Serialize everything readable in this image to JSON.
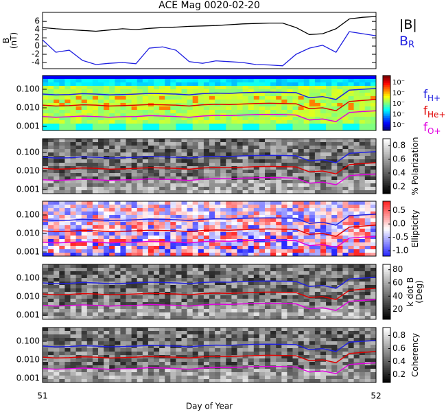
{
  "chart_data": [
    {
      "type": "line",
      "title": "ACE Mag 0020-02-20",
      "ylabel": [
        "B",
        "(nT)"
      ],
      "x": [
        51,
        51.04,
        51.08,
        51.12,
        51.16,
        51.2,
        51.24,
        51.28,
        51.32,
        51.36,
        51.4,
        51.44,
        51.48,
        51.52,
        51.56,
        51.6,
        51.64,
        51.68,
        51.72,
        51.76,
        51.8,
        51.84,
        51.88,
        51.92,
        51.96,
        52
      ],
      "xlim": [
        51,
        52
      ],
      "ylim": [
        -5.5,
        8.2
      ],
      "yticks": [
        -4,
        -2,
        0,
        2,
        4,
        6
      ],
      "series": [
        {
          "name": "|B|",
          "color": "#000000",
          "values": [
            4.5,
            4.2,
            4.0,
            3.8,
            3.6,
            3.9,
            4.2,
            4.0,
            4.3,
            4.5,
            4.6,
            4.8,
            4.9,
            5.0,
            5.2,
            5.4,
            5.5,
            5.6,
            5.6,
            4.5,
            2.8,
            3.0,
            4.2,
            6.6,
            7.0,
            7.2
          ]
        },
        {
          "name": "B",
          "subscript": "R",
          "color": "#2020e0",
          "values": [
            1.5,
            -1.5,
            -1.0,
            -3.5,
            -4.5,
            -4.2,
            -4.0,
            -4.3,
            -0.5,
            -0.2,
            -1.0,
            -3.8,
            -4.2,
            -3.6,
            -3.8,
            -4.0,
            -4.5,
            -4.6,
            -4.8,
            -2.0,
            -0.5,
            0.2,
            -1.5,
            3.5,
            3.0,
            2.5
          ]
        }
      ]
    },
    {
      "type": "spectrogram",
      "colormap": "jet",
      "log_y": true,
      "x": [
        51,
        51.04,
        51.08,
        51.12,
        51.16,
        51.2,
        51.24,
        51.28,
        51.32,
        51.36,
        51.4,
        51.44,
        51.48,
        51.52,
        51.56,
        51.6,
        51.64,
        51.68,
        51.72,
        51.76,
        51.8,
        51.84,
        51.88,
        51.92,
        51.96,
        52
      ],
      "xlim": [
        51,
        52
      ],
      "ylim": [
        0.0006,
        0.55
      ],
      "yticks": [
        {
          "value": 0.1,
          "label": "0.100"
        },
        {
          "value": 0.01,
          "label": "0.010"
        },
        0.001
      ],
      "colorbar_tick_labels": [
        "10⁻",
        "10⁻",
        "10⁻",
        "10⁻",
        "10⁻"
      ],
      "series": [
        {
          "name": "f",
          "subscript": "H+",
          "color": "#2020e0",
          "values": [
            0.055,
            0.05,
            0.052,
            0.058,
            0.055,
            0.05,
            0.052,
            0.055,
            0.06,
            0.058,
            0.055,
            0.05,
            0.058,
            0.062,
            0.06,
            0.065,
            0.068,
            0.07,
            0.068,
            0.066,
            0.035,
            0.04,
            0.028,
            0.09,
            0.1,
            0.11
          ]
        },
        {
          "name": "f",
          "subscript": "He+",
          "color": "#e00000",
          "values": [
            0.014,
            0.0125,
            0.013,
            0.0145,
            0.014,
            0.0125,
            0.013,
            0.014,
            0.015,
            0.0145,
            0.014,
            0.0125,
            0.0145,
            0.0155,
            0.015,
            0.016,
            0.017,
            0.0175,
            0.017,
            0.0165,
            0.009,
            0.01,
            0.007,
            0.022,
            0.025,
            0.028
          ]
        },
        {
          "name": "f",
          "subscript": "O+",
          "color": "#e000e0",
          "values": [
            0.0034,
            0.0031,
            0.0033,
            0.0036,
            0.0034,
            0.0031,
            0.0033,
            0.0034,
            0.0038,
            0.0036,
            0.0034,
            0.0031,
            0.0036,
            0.0039,
            0.0038,
            0.0041,
            0.0043,
            0.0044,
            0.0043,
            0.0041,
            0.0022,
            0.0025,
            0.0018,
            0.0056,
            0.0063,
            0.0069
          ]
        }
      ]
    },
    {
      "type": "spectrogram",
      "colormap": "gray",
      "colorbar": {
        "label": [
          "% Polarization"
        ],
        "lim": [
          0.1,
          0.9
        ],
        "ticks": [
          0.2,
          0.4,
          0.6,
          0.8
        ]
      }
    },
    {
      "type": "spectrogram",
      "colormap": "bwr",
      "colorbar": {
        "label": [
          "Ellipticity"
        ],
        "lim": [
          -1.2,
          0.85
        ],
        "ticks": [
          {
            "value": -1,
            "label": "-1.0"
          },
          -0.5,
          {
            "value": 0,
            "label": "0.0"
          },
          0.5
        ]
      }
    },
    {
      "type": "spectrogram",
      "colormap": "gray",
      "colorbar": {
        "label": [
          "k dot B",
          "(Deg)"
        ],
        "lim": [
          5,
          88
        ],
        "ticks": [
          20,
          40,
          60,
          80
        ]
      }
    },
    {
      "type": "spectrogram",
      "colormap": "gray",
      "xlabel": "Day of Year",
      "xticks": [
        51,
        52
      ],
      "colorbar": {
        "label": [
          "Coherency"
        ],
        "lim": [
          0.08,
          0.92
        ],
        "ticks": [
          0.2,
          0.4,
          0.6,
          0.8
        ]
      }
    }
  ]
}
